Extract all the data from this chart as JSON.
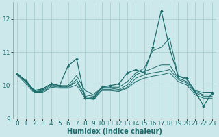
{
  "xlabel": "Humidex (Indice chaleur)",
  "background_color": "#cce8ea",
  "grid_color": "#aacfd2",
  "line_color": "#1a6b6b",
  "xlim": [
    -0.5,
    23.5
  ],
  "ylim": [
    9.0,
    12.5
  ],
  "yticks": [
    9,
    10,
    11,
    12
  ],
  "xticks": [
    0,
    1,
    2,
    3,
    4,
    5,
    6,
    7,
    8,
    9,
    10,
    11,
    12,
    13,
    14,
    15,
    16,
    17,
    18,
    19,
    20,
    21,
    22,
    23
  ],
  "series": [
    [
      10.35,
      10.15,
      9.85,
      9.9,
      10.05,
      10.0,
      10.6,
      10.8,
      9.62,
      9.62,
      9.95,
      10.0,
      10.05,
      10.38,
      10.48,
      10.38,
      11.15,
      12.25,
      11.1,
      10.28,
      10.22,
      9.82,
      9.38,
      9.78
    ],
    [
      10.35,
      10.15,
      9.85,
      9.9,
      10.05,
      10.0,
      10.0,
      10.3,
      9.85,
      9.72,
      9.95,
      9.95,
      9.95,
      10.12,
      10.38,
      10.52,
      11.05,
      11.15,
      11.42,
      10.28,
      10.18,
      9.85,
      9.78,
      9.78
    ],
    [
      10.35,
      10.12,
      9.82,
      9.85,
      10.02,
      9.97,
      9.97,
      10.18,
      9.72,
      9.68,
      9.92,
      9.92,
      9.88,
      10.02,
      10.32,
      10.42,
      10.52,
      10.62,
      10.62,
      10.22,
      10.12,
      9.82,
      9.72,
      9.72
    ],
    [
      10.35,
      10.1,
      9.82,
      9.82,
      9.98,
      9.95,
      9.95,
      10.12,
      9.68,
      9.62,
      9.88,
      9.88,
      9.85,
      9.95,
      10.22,
      10.32,
      10.38,
      10.42,
      10.48,
      10.18,
      10.08,
      9.78,
      9.68,
      9.68
    ],
    [
      10.32,
      10.05,
      9.78,
      9.78,
      9.95,
      9.92,
      9.92,
      10.02,
      9.62,
      9.58,
      9.85,
      9.85,
      9.82,
      9.92,
      10.12,
      10.22,
      10.28,
      10.32,
      10.38,
      10.12,
      10.02,
      9.72,
      9.62,
      9.62
    ]
  ],
  "fontsize_label": 7,
  "fontsize_tick": 6.5
}
